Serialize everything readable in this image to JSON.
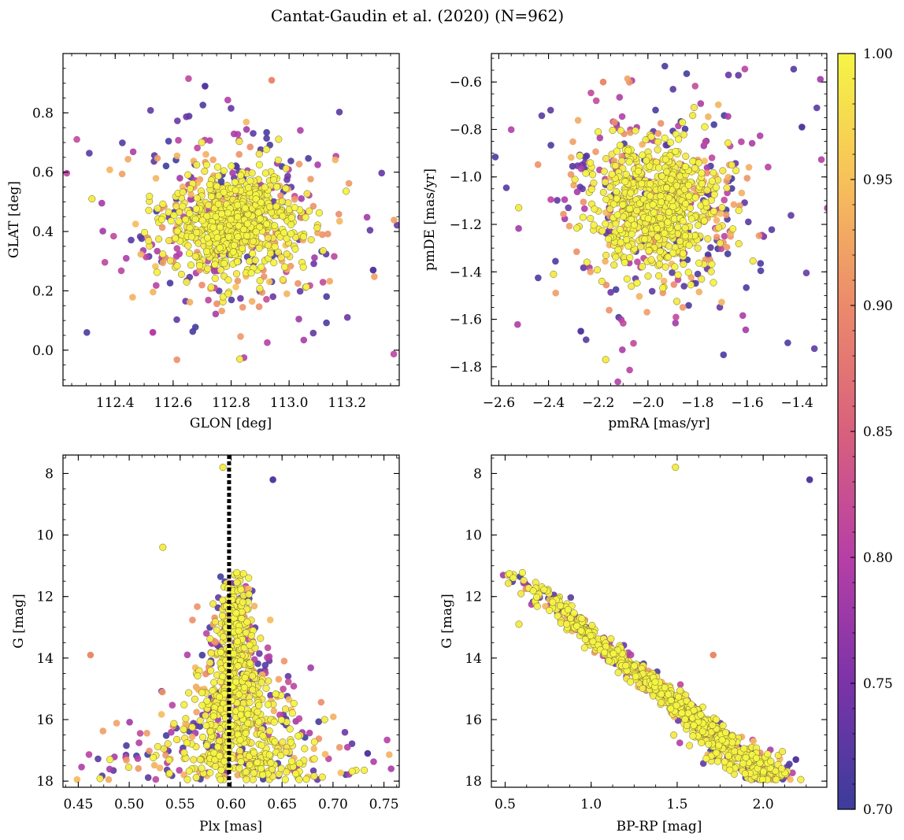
{
  "title": "Cantat-Gaudin et al. (2020) (N=962)",
  "colorbar": {
    "range": [
      0.7,
      1.0
    ],
    "ticks": [
      0.7,
      0.75,
      0.8,
      0.85,
      0.9,
      0.95,
      1.0
    ],
    "tick_labels": [
      "0.70",
      "0.75",
      "0.80",
      "0.85",
      "0.90",
      "0.95",
      "1.00"
    ],
    "colormap": "plasma",
    "colors": [
      "#3b3d9b",
      "#7b33a8",
      "#b63fa6",
      "#d9607d",
      "#eb8a6b",
      "#f7c15a",
      "#f6f545"
    ]
  },
  "chart_data": [
    {
      "type": "scatter",
      "id": "glon-glat",
      "xlabel": "GLON [deg]",
      "ylabel": "GLAT [deg]",
      "xlim": [
        112.22,
        113.38
      ],
      "ylim": [
        -0.12,
        1.0
      ],
      "xticks": [
        112.4,
        112.6,
        112.8,
        113.0,
        113.2
      ],
      "xtick_labels": [
        "112.4",
        "112.6",
        "112.8",
        "113.0",
        "113.2"
      ],
      "yticks": [
        0.0,
        0.2,
        0.4,
        0.6,
        0.8
      ],
      "ytick_labels": [
        "0.0",
        "0.2",
        "0.4",
        "0.6",
        "0.8"
      ],
      "cluster": {
        "x": [
          112.6,
          113.0
        ],
        "y": [
          0.28,
          0.58
        ]
      },
      "outliers": [
        [
          112.32,
          0.51
        ],
        [
          112.71,
          0.89
        ],
        [
          112.83,
          -0.03
        ],
        [
          112.94,
          0.91
        ],
        [
          113.29,
          0.27
        ],
        [
          112.79,
          0.19
        ],
        [
          112.53,
          0.06
        ]
      ],
      "n_points": 962
    },
    {
      "type": "scatter",
      "id": "pmra-pmde",
      "xlabel": "pmRA [mas/yr]",
      "ylabel": "pmDE [mas/yr]",
      "xlim": [
        -2.63,
        -1.28
      ],
      "ylim": [
        -1.88,
        -0.48
      ],
      "xticks": [
        -2.6,
        -2.4,
        -2.2,
        -2.0,
        -1.8,
        -1.6,
        -1.4
      ],
      "xtick_labels": [
        "−2.6",
        "−2.4",
        "−2.2",
        "−2.0",
        "−1.8",
        "−1.6",
        "−1.4"
      ],
      "yticks": [
        -1.8,
        -1.6,
        -1.4,
        -1.2,
        -1.0,
        -0.8,
        -0.6
      ],
      "ytick_labels": [
        "−1.8",
        "−1.6",
        "−1.4",
        "−1.2",
        "−1.0",
        "−0.8",
        "−0.6"
      ],
      "cluster": {
        "x": [
          -2.1,
          -1.75
        ],
        "y": [
          -1.4,
          -0.9
        ]
      },
      "outliers": [
        [
          -2.52,
          -1.13
        ],
        [
          -1.38,
          -0.79
        ],
        [
          -2.17,
          -1.77
        ],
        [
          -2.18,
          -0.6
        ],
        [
          -2.27,
          -1.65
        ],
        [
          -2.38,
          -1.41
        ]
      ],
      "n_points": 962
    },
    {
      "type": "scatter",
      "id": "plx-g",
      "xlabel": "Plx [mas]",
      "ylabel": "G [mag]",
      "xlim": [
        0.435,
        0.765
      ],
      "ylim": [
        18.2,
        7.4
      ],
      "y_inverted": true,
      "xticks": [
        0.45,
        0.5,
        0.55,
        0.6,
        0.65,
        0.7,
        0.75
      ],
      "xtick_labels": [
        "0.45",
        "0.50",
        "0.55",
        "0.60",
        "0.65",
        "0.70",
        "0.75"
      ],
      "yticks": [
        8,
        10,
        12,
        14,
        16,
        18
      ],
      "ytick_labels": [
        "8",
        "10",
        "12",
        "14",
        "16",
        "18"
      ],
      "vline": 0.598,
      "outliers": [
        [
          0.592,
          7.8
        ],
        [
          0.641,
          8.2
        ],
        [
          0.533,
          10.4
        ],
        [
          0.462,
          13.9
        ],
        [
          0.734,
          17.1
        ]
      ],
      "n_points": 962
    },
    {
      "type": "scatter",
      "id": "bprp-g",
      "xlabel": "BP-RP [mag]",
      "ylabel": "G [mag]",
      "xlim": [
        0.42,
        2.37
      ],
      "ylim": [
        18.2,
        7.4
      ],
      "y_inverted": true,
      "xticks": [
        0.5,
        1.0,
        1.5,
        2.0
      ],
      "xtick_labels": [
        "0.5",
        "1.0",
        "1.5",
        "2.0"
      ],
      "yticks": [
        8,
        10,
        12,
        14,
        16,
        18
      ],
      "ytick_labels": [
        "8",
        "10",
        "12",
        "14",
        "16",
        "18"
      ],
      "sequence": [
        [
          0.55,
          11.8
        ],
        [
          0.8,
          12.8
        ],
        [
          1.0,
          13.8
        ],
        [
          1.3,
          14.9
        ],
        [
          1.5,
          15.9
        ],
        [
          1.7,
          16.9
        ],
        [
          1.9,
          17.5
        ],
        [
          2.05,
          17.8
        ]
      ],
      "outliers": [
        [
          1.49,
          7.8
        ],
        [
          2.27,
          8.2
        ],
        [
          0.58,
          12.9
        ],
        [
          1.71,
          13.9
        ],
        [
          2.19,
          17.3
        ]
      ],
      "n_points": 962
    }
  ]
}
